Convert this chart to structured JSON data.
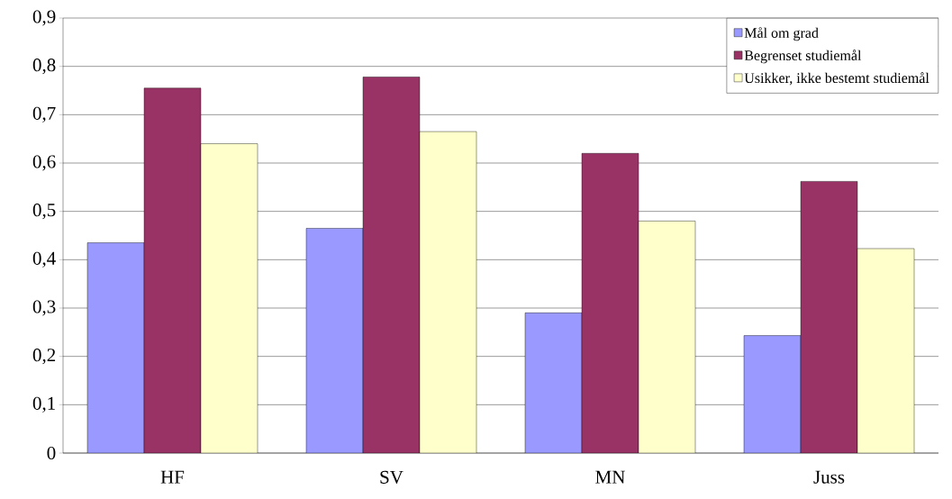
{
  "chart_data": {
    "type": "bar",
    "categories": [
      "HF",
      "SV",
      "MN",
      "Juss"
    ],
    "series": [
      {
        "name": "Mål om grad",
        "color": "#9999ff",
        "values": [
          0.435,
          0.465,
          0.29,
          0.243
        ]
      },
      {
        "name": "Begrenset studiemål",
        "color": "#993366",
        "values": [
          0.755,
          0.778,
          0.62,
          0.562
        ]
      },
      {
        "name": "Usikker, ikke bestemt studiemål",
        "color": "#ffffcc",
        "values": [
          0.64,
          0.665,
          0.48,
          0.423
        ]
      }
    ],
    "ylim": [
      0,
      0.9
    ],
    "yticks": [
      0,
      {
        "value": 0.1,
        "label": "0,1"
      },
      {
        "value": 0.2,
        "label": "0,2"
      },
      {
        "value": 0.3,
        "label": "0,3"
      },
      {
        "value": 0.4,
        "label": "0,4"
      },
      {
        "value": 0.5,
        "label": "0,5"
      },
      {
        "value": 0.6,
        "label": "0,6"
      },
      {
        "value": 0.7,
        "label": "0,7"
      },
      {
        "value": 0.8,
        "label": "0,8"
      },
      {
        "value": 0.9,
        "label": "0,9"
      }
    ],
    "grid": "y",
    "legend": "top right"
  }
}
